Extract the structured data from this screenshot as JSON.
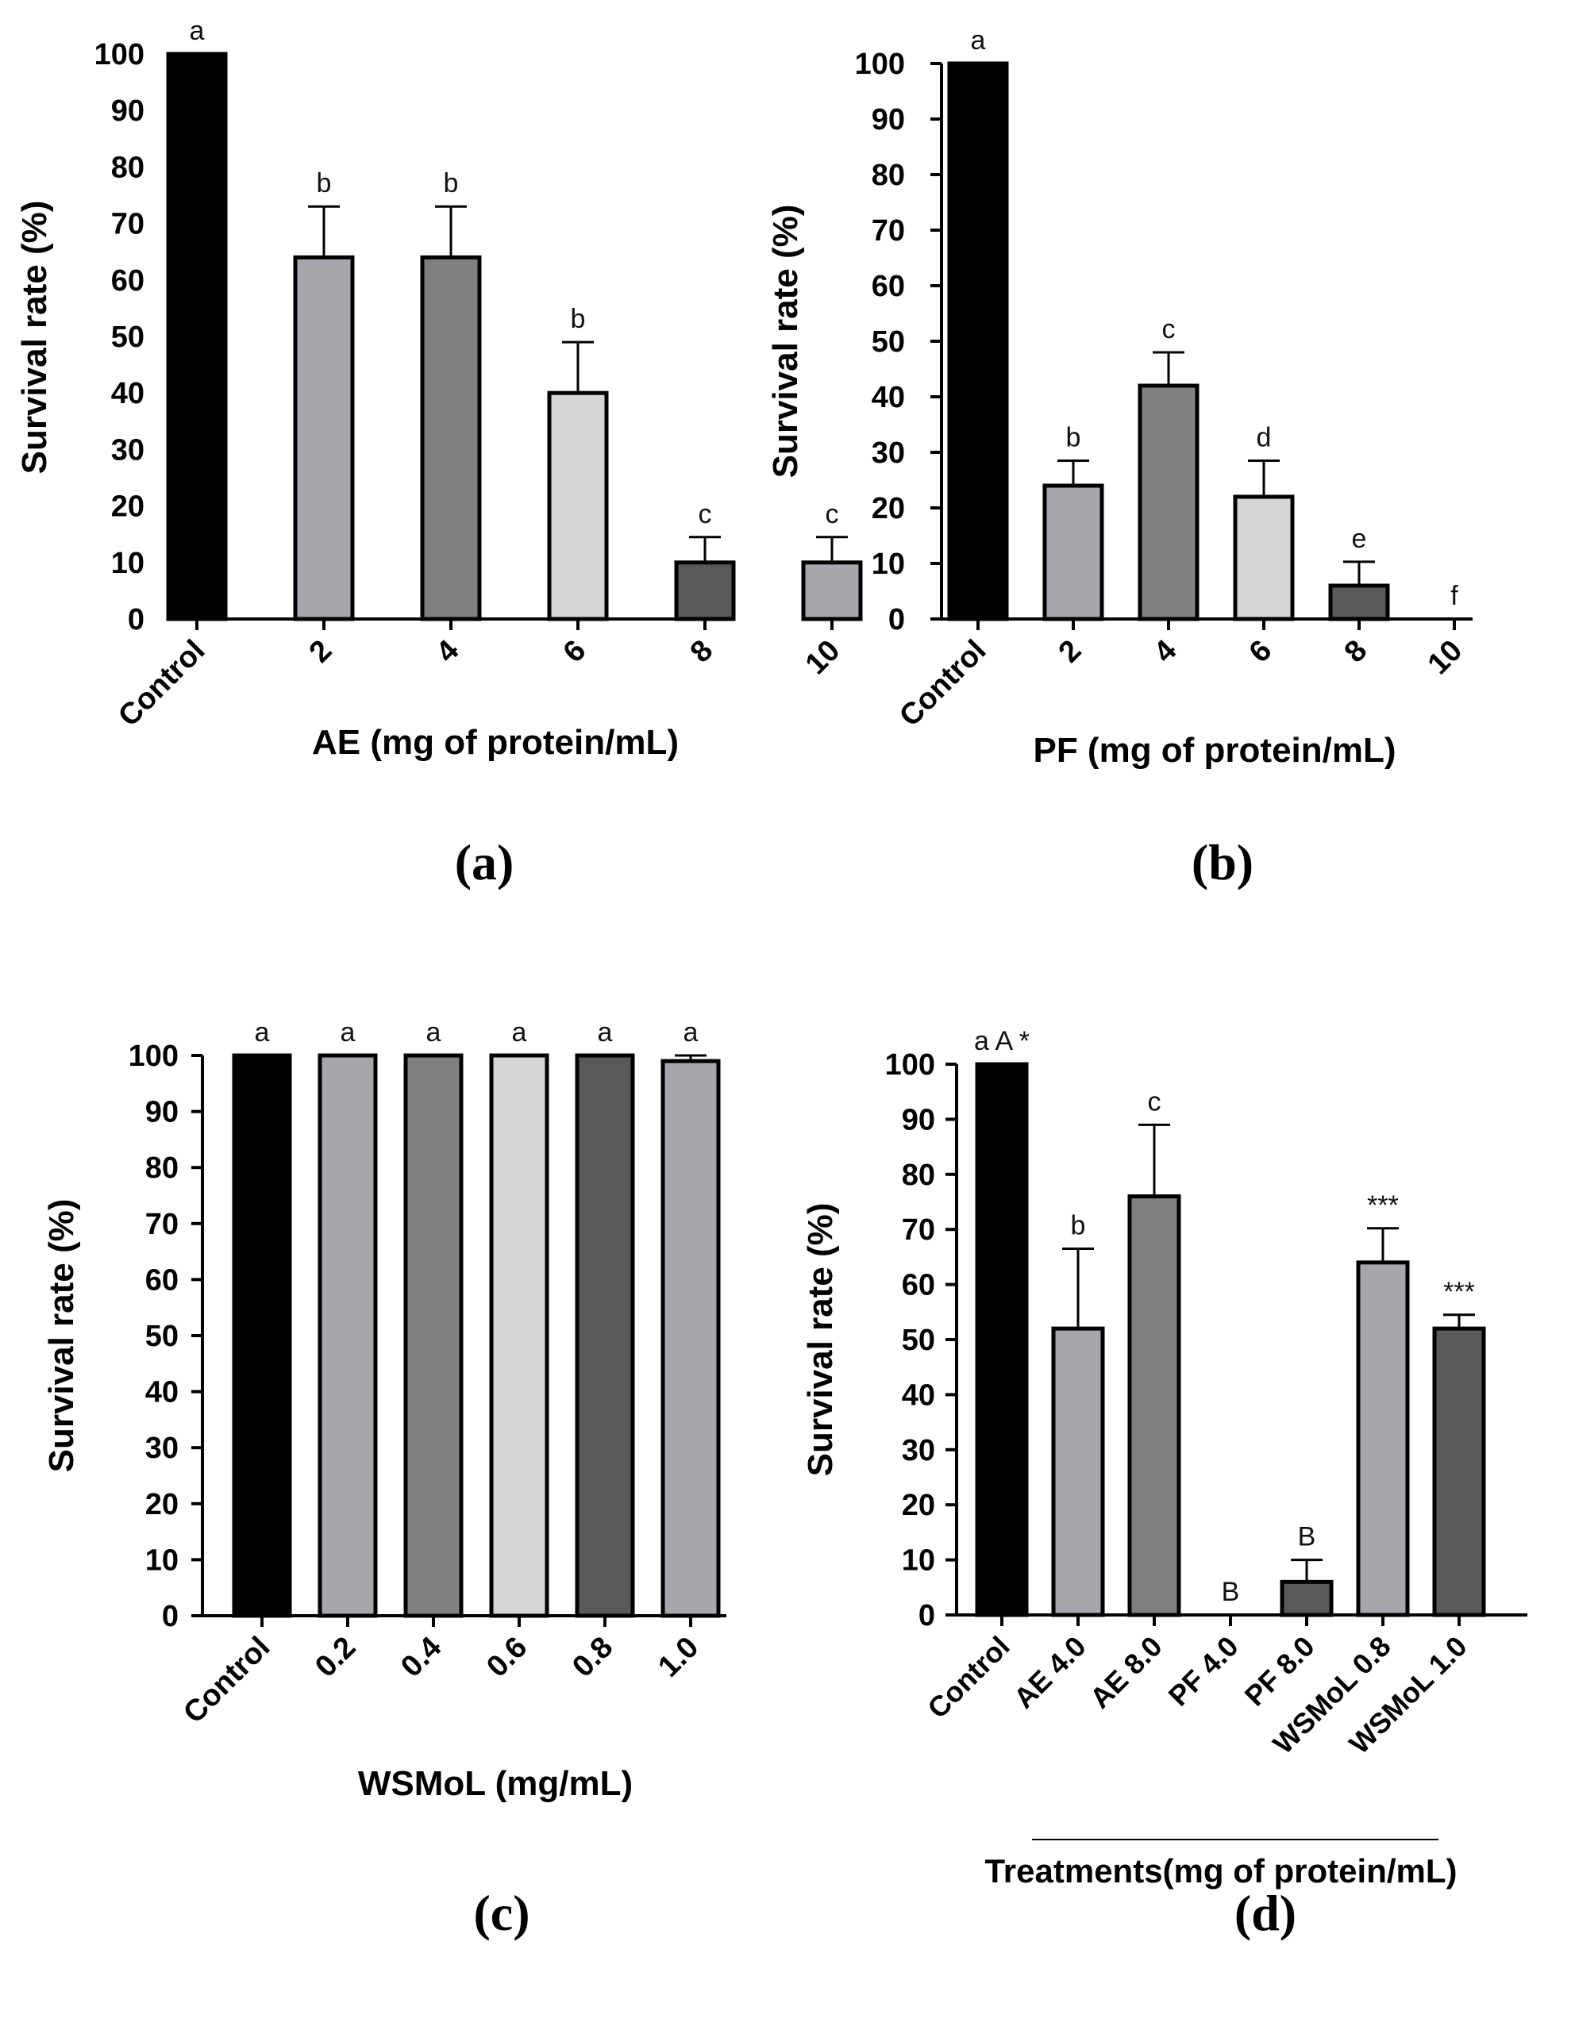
{
  "chart_data": [
    {
      "type": "bar",
      "panel_label": "(a)",
      "title": "",
      "ylabel": "Survival rate (%)",
      "xlabel": "AE (mg of protein/mL)",
      "ylim": [
        0,
        100
      ],
      "yticks": [
        0,
        10,
        20,
        30,
        40,
        50,
        60,
        70,
        80,
        90,
        100
      ],
      "categories": [
        "Control",
        "2",
        "4",
        "6",
        "8",
        "10"
      ],
      "values": [
        100,
        64,
        64,
        40,
        10,
        10
      ],
      "errors": [
        0,
        9,
        9,
        9,
        4.5,
        4.5
      ],
      "annotations": [
        "a",
        "b",
        "b",
        "b",
        "c",
        "c"
      ],
      "bar_colors": [
        "#000000",
        "#a6a6ad",
        "#808080",
        "#d6d6d6",
        "#595959",
        "#a6a6ad"
      ]
    },
    {
      "type": "bar",
      "panel_label": "(b)",
      "title": "",
      "ylabel": "Survival rate (%)",
      "xlabel": "PF (mg of protein/mL)",
      "ylim": [
        0,
        100
      ],
      "yticks": [
        0,
        10,
        20,
        30,
        40,
        50,
        60,
        70,
        80,
        90,
        100
      ],
      "categories": [
        "Control",
        "2",
        "4",
        "6",
        "8",
        "10"
      ],
      "values": [
        100,
        24,
        42,
        22,
        6,
        0
      ],
      "errors": [
        0,
        4.5,
        6,
        6.5,
        4.3,
        0
      ],
      "annotations": [
        "a",
        "b",
        "c",
        "d",
        "e",
        "f"
      ],
      "bar_colors": [
        "#000000",
        "#a6a6ad",
        "#808080",
        "#d6d6d6",
        "#595959",
        "#a6a6ad"
      ]
    },
    {
      "type": "bar",
      "panel_label": "(c)",
      "title": "",
      "ylabel": "Survival rate (%)",
      "xlabel": "WSMoL (mg/mL)",
      "ylim": [
        0,
        100
      ],
      "yticks": [
        0,
        10,
        20,
        30,
        40,
        50,
        60,
        70,
        80,
        90,
        100
      ],
      "categories": [
        "Control",
        "0.2",
        "0.4",
        "0.6",
        "0.8",
        "1.0"
      ],
      "values": [
        100,
        100,
        100,
        100,
        100,
        99
      ],
      "errors": [
        0,
        0,
        0,
        0,
        0,
        1
      ],
      "annotations": [
        "a",
        "a",
        "a",
        "a",
        "a",
        "a"
      ],
      "bar_colors": [
        "#000000",
        "#a6a6ad",
        "#808080",
        "#d6d6d6",
        "#595959",
        "#a6a6ad"
      ]
    },
    {
      "type": "bar",
      "panel_label": "(d)",
      "title": "",
      "ylabel": "Survival rate (%)",
      "xlabel": "Treatments(mg of protein/mL)",
      "ylim": [
        0,
        100
      ],
      "yticks": [
        0,
        10,
        20,
        30,
        40,
        50,
        60,
        70,
        80,
        90,
        100
      ],
      "categories": [
        "Control",
        "AE 4.0",
        "AE 8.0",
        "PF 4.0",
        "PF 8.0",
        "WSMoL 0.8",
        "WSMoL 1.0"
      ],
      "values": [
        100,
        52,
        76,
        0,
        6,
        64,
        52
      ],
      "errors": [
        0,
        14.5,
        13,
        0,
        4,
        6.2,
        2.5
      ],
      "annotations": [
        "a A *",
        "b",
        "c",
        "B",
        "B",
        "***",
        "***"
      ],
      "bar_colors": [
        "#000000",
        "#a6a6ad",
        "#808080",
        "#d6d6d6",
        "#595959",
        "#a6a6ad",
        "#595959"
      ]
    }
  ]
}
